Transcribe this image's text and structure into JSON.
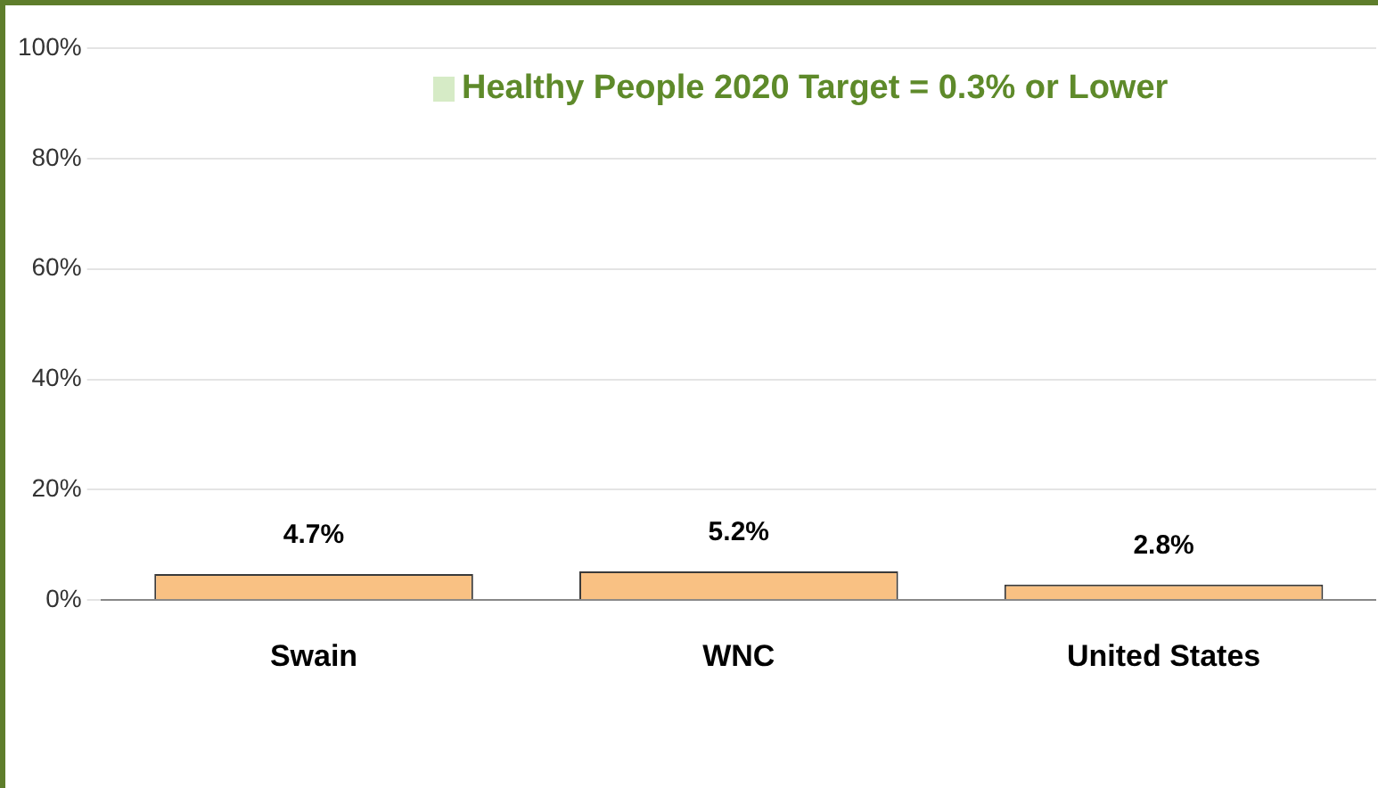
{
  "chart_data": {
    "type": "bar",
    "categories": [
      "Swain",
      "WNC",
      "United States"
    ],
    "values": [
      4.7,
      5.2,
      2.8
    ],
    "color": "#f9c183",
    "data_labels": true,
    "value_labels": [
      "4.7%",
      "5.2%",
      "2.8%"
    ],
    "annotations": [
      "Healthy People 2020 Target = 0.3% or Lower"
    ],
    "ylim": [
      0,
      100
    ],
    "yticks": [
      {
        "value": 0,
        "label": "0%"
      },
      {
        "value": 20,
        "label": "20%"
      },
      {
        "value": 40,
        "label": "40%"
      },
      {
        "value": 60,
        "label": "60%"
      },
      {
        "value": 80,
        "label": "80%"
      },
      {
        "value": 100,
        "label": "100%"
      }
    ],
    "grid": "y",
    "legend": false
  }
}
